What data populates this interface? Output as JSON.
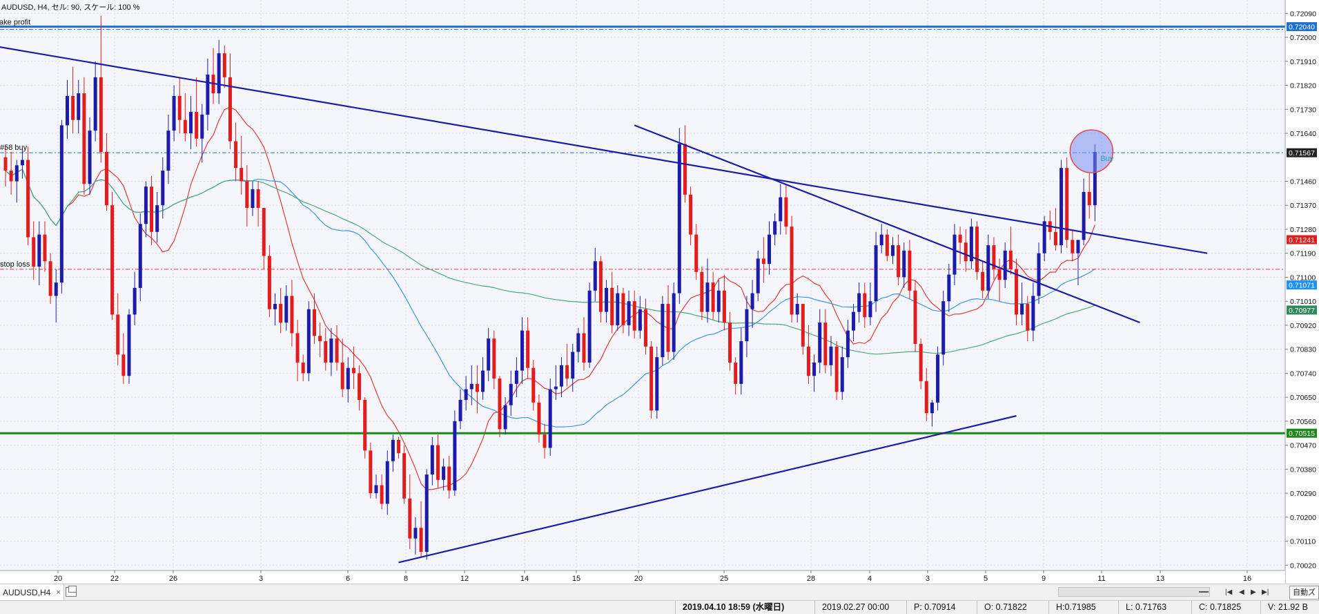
{
  "chart_header": "AUDUSD, H4, セル: 90, スケール: 100 %",
  "levels": {
    "take_profit": {
      "label": "take profit",
      "price": "0.72040",
      "color": "#1e6fd0"
    },
    "order": {
      "label": "#58 buy",
      "price": "0.71567",
      "color": "#1e6fd0"
    },
    "stop_loss": {
      "label": "stop loss",
      "price": "0.71130",
      "color": "#e03a3a"
    },
    "support": {
      "price": "0.70515",
      "color": "#1a8a1a"
    }
  },
  "buy_marker": "Buy",
  "price_badges": [
    {
      "value": "0.71241",
      "bg": "#e11d1d"
    },
    {
      "value": "0.71071",
      "bg": "#1e90ff"
    },
    {
      "value": "0.70977",
      "bg": "#2e8b57"
    }
  ],
  "y_axis": {
    "ticks": [
      "0.72090",
      "0.72000",
      "0.71910",
      "0.71820",
      "0.71730",
      "0.71640",
      "0.71460",
      "0.71370",
      "0.71280",
      "0.71190",
      "0.71100",
      "0.71010",
      "0.70920",
      "0.70830",
      "0.70740",
      "0.70650",
      "0.70560",
      "0.70470",
      "0.70380",
      "0.70290",
      "0.70200",
      "0.70110",
      "0.70020"
    ]
  },
  "x_axis": {
    "ticks": [
      "20",
      "22",
      "26",
      "3",
      "6",
      "8",
      "12",
      "14",
      "15",
      "20",
      "25",
      "28",
      "4",
      "3",
      "5",
      "9",
      "11",
      "13",
      "16"
    ]
  },
  "chart_data": {
    "type": "candlestick",
    "symbol": "AUDUSD",
    "timeframe": "H4",
    "ylim": [
      0.7,
      0.7214
    ],
    "bull_color": "#1c1ca8",
    "bear_color": "#e11d1d",
    "candles": [
      [
        0.7155,
        0.7159,
        0.7144,
        0.715
      ],
      [
        0.715,
        0.7157,
        0.7141,
        0.7146
      ],
      [
        0.7146,
        0.7154,
        0.7138,
        0.7152
      ],
      [
        0.7152,
        0.7158,
        0.7147,
        0.7154
      ],
      [
        0.7154,
        0.7159,
        0.7122,
        0.7125
      ],
      [
        0.7125,
        0.7131,
        0.7109,
        0.7114
      ],
      [
        0.7114,
        0.7131,
        0.7107,
        0.7126
      ],
      [
        0.7126,
        0.7131,
        0.7112,
        0.7116
      ],
      [
        0.7116,
        0.7119,
        0.71,
        0.7103
      ],
      [
        0.7103,
        0.7113,
        0.7093,
        0.7108
      ],
      [
        0.7108,
        0.7169,
        0.7104,
        0.7167
      ],
      [
        0.7167,
        0.7184,
        0.7162,
        0.7178
      ],
      [
        0.7178,
        0.7189,
        0.7164,
        0.7169
      ],
      [
        0.7169,
        0.7184,
        0.7164,
        0.7179
      ],
      [
        0.7179,
        0.7185,
        0.7141,
        0.7145
      ],
      [
        0.7145,
        0.717,
        0.7141,
        0.7165
      ],
      [
        0.7165,
        0.7191,
        0.7161,
        0.7185
      ],
      [
        0.7185,
        0.7208,
        0.7153,
        0.7157
      ],
      [
        0.7157,
        0.7164,
        0.7135,
        0.7137
      ],
      [
        0.7137,
        0.7142,
        0.7094,
        0.7096
      ],
      [
        0.7096,
        0.7104,
        0.7077,
        0.7081
      ],
      [
        0.7081,
        0.7089,
        0.707,
        0.7073
      ],
      [
        0.7073,
        0.7098,
        0.707,
        0.7096
      ],
      [
        0.7096,
        0.7112,
        0.7092,
        0.7106
      ],
      [
        0.7106,
        0.7134,
        0.7101,
        0.713
      ],
      [
        0.713,
        0.7146,
        0.7125,
        0.7144
      ],
      [
        0.7144,
        0.7148,
        0.7122,
        0.7127
      ],
      [
        0.7127,
        0.7142,
        0.7123,
        0.7137
      ],
      [
        0.7137,
        0.7155,
        0.7132,
        0.715
      ],
      [
        0.715,
        0.7171,
        0.7145,
        0.7165
      ],
      [
        0.7165,
        0.7182,
        0.7161,
        0.7178
      ],
      [
        0.7178,
        0.7185,
        0.7164,
        0.7169
      ],
      [
        0.7169,
        0.7179,
        0.7161,
        0.7164
      ],
      [
        0.7164,
        0.7178,
        0.7158,
        0.7172
      ],
      [
        0.7172,
        0.7185,
        0.7159,
        0.7162
      ],
      [
        0.7162,
        0.7175,
        0.7153,
        0.7171
      ],
      [
        0.7171,
        0.7192,
        0.7165,
        0.7186
      ],
      [
        0.7186,
        0.7196,
        0.7175,
        0.7179
      ],
      [
        0.7179,
        0.7199,
        0.7175,
        0.7194
      ],
      [
        0.7194,
        0.7197,
        0.7181,
        0.7185
      ],
      [
        0.7185,
        0.7194,
        0.7158,
        0.7161
      ],
      [
        0.7161,
        0.7168,
        0.7146,
        0.7151
      ],
      [
        0.7151,
        0.7163,
        0.7141,
        0.7146
      ],
      [
        0.7146,
        0.7152,
        0.7129,
        0.7136
      ],
      [
        0.7136,
        0.7146,
        0.7133,
        0.7143
      ],
      [
        0.7143,
        0.7146,
        0.7129,
        0.7136
      ],
      [
        0.7136,
        0.7136,
        0.7113,
        0.7118
      ],
      [
        0.7118,
        0.7122,
        0.7095,
        0.7098
      ],
      [
        0.7098,
        0.7104,
        0.7092,
        0.71
      ],
      [
        0.71,
        0.7106,
        0.7089,
        0.7093
      ],
      [
        0.7093,
        0.7107,
        0.709,
        0.7103
      ],
      [
        0.7103,
        0.7109,
        0.7084,
        0.7089
      ],
      [
        0.7089,
        0.7094,
        0.7071,
        0.7078
      ],
      [
        0.7078,
        0.7081,
        0.7071,
        0.7074
      ],
      [
        0.7074,
        0.7101,
        0.7071,
        0.7098
      ],
      [
        0.7098,
        0.7104,
        0.7085,
        0.7088
      ],
      [
        0.7088,
        0.7093,
        0.708,
        0.7086
      ],
      [
        0.7086,
        0.7091,
        0.7075,
        0.7078
      ],
      [
        0.7078,
        0.7091,
        0.7073,
        0.7087
      ],
      [
        0.7087,
        0.7092,
        0.7075,
        0.7078
      ],
      [
        0.7078,
        0.7087,
        0.7065,
        0.7068
      ],
      [
        0.7068,
        0.708,
        0.7063,
        0.7076
      ],
      [
        0.7076,
        0.7084,
        0.7068,
        0.7074
      ],
      [
        0.7074,
        0.7077,
        0.706,
        0.7064
      ],
      [
        0.7064,
        0.7065,
        0.7042,
        0.7045
      ],
      [
        0.7045,
        0.7048,
        0.7027,
        0.7029
      ],
      [
        0.7029,
        0.7036,
        0.7027,
        0.7032
      ],
      [
        0.7032,
        0.7036,
        0.7023,
        0.7025
      ],
      [
        0.7025,
        0.7045,
        0.7021,
        0.7041
      ],
      [
        0.7041,
        0.7051,
        0.7037,
        0.7049
      ],
      [
        0.7049,
        0.705,
        0.7042,
        0.7044
      ],
      [
        0.7044,
        0.7047,
        0.7025,
        0.7027
      ],
      [
        0.7027,
        0.7036,
        0.7008,
        0.7012
      ],
      [
        0.7012,
        0.702,
        0.7006,
        0.7016
      ],
      [
        0.7016,
        0.7026,
        0.7005,
        0.7007
      ],
      [
        0.7007,
        0.7038,
        0.7004,
        0.7036
      ],
      [
        0.7036,
        0.705,
        0.7032,
        0.7047
      ],
      [
        0.7047,
        0.7051,
        0.7031,
        0.7034
      ],
      [
        0.7034,
        0.7042,
        0.703,
        0.7039
      ],
      [
        0.7039,
        0.7043,
        0.7027,
        0.703
      ],
      [
        0.703,
        0.706,
        0.7028,
        0.7056
      ],
      [
        0.7056,
        0.7068,
        0.7053,
        0.7064
      ],
      [
        0.7064,
        0.7073,
        0.706,
        0.7068
      ],
      [
        0.7068,
        0.7077,
        0.7062,
        0.707
      ],
      [
        0.707,
        0.7077,
        0.7059,
        0.7067
      ],
      [
        0.7067,
        0.708,
        0.7064,
        0.7075
      ],
      [
        0.7075,
        0.7091,
        0.7071,
        0.7087
      ],
      [
        0.7087,
        0.709,
        0.7068,
        0.7072
      ],
      [
        0.7072,
        0.7073,
        0.705,
        0.7053
      ],
      [
        0.7053,
        0.7065,
        0.7051,
        0.7062
      ],
      [
        0.7062,
        0.7075,
        0.7058,
        0.707
      ],
      [
        0.707,
        0.708,
        0.7065,
        0.7075
      ],
      [
        0.7075,
        0.7095,
        0.707,
        0.709
      ],
      [
        0.709,
        0.7095,
        0.7072,
        0.7076
      ],
      [
        0.7076,
        0.7079,
        0.706,
        0.7063
      ],
      [
        0.7063,
        0.7066,
        0.7048,
        0.7051
      ],
      [
        0.7051,
        0.7055,
        0.7042,
        0.7046
      ],
      [
        0.7046,
        0.7072,
        0.7043,
        0.7068
      ],
      [
        0.7068,
        0.7077,
        0.7064,
        0.7069
      ],
      [
        0.7069,
        0.708,
        0.7065,
        0.7077
      ],
      [
        0.7077,
        0.7085,
        0.7069,
        0.7072
      ],
      [
        0.7072,
        0.7085,
        0.7067,
        0.7082
      ],
      [
        0.7082,
        0.7091,
        0.7078,
        0.7089
      ],
      [
        0.7089,
        0.7095,
        0.7075,
        0.7078
      ],
      [
        0.7078,
        0.7108,
        0.7076,
        0.7105
      ],
      [
        0.7105,
        0.7121,
        0.7101,
        0.7116
      ],
      [
        0.7116,
        0.7118,
        0.7093,
        0.7097
      ],
      [
        0.7097,
        0.7109,
        0.7093,
        0.7106
      ],
      [
        0.7106,
        0.7112,
        0.7089,
        0.7092
      ],
      [
        0.7092,
        0.7107,
        0.709,
        0.7104
      ],
      [
        0.7104,
        0.7106,
        0.7089,
        0.7092
      ],
      [
        0.7092,
        0.7105,
        0.7088,
        0.7101
      ],
      [
        0.7101,
        0.7105,
        0.7087,
        0.709
      ],
      [
        0.709,
        0.7103,
        0.7087,
        0.7098
      ],
      [
        0.7098,
        0.7102,
        0.7081,
        0.7084
      ],
      [
        0.7084,
        0.7086,
        0.7057,
        0.706
      ],
      [
        0.706,
        0.7084,
        0.7057,
        0.708
      ],
      [
        0.708,
        0.7103,
        0.7077,
        0.71
      ],
      [
        0.71,
        0.7107,
        0.7079,
        0.7082
      ],
      [
        0.7082,
        0.7108,
        0.7079,
        0.7104
      ],
      [
        0.7104,
        0.7166,
        0.71,
        0.716
      ],
      [
        0.716,
        0.7167,
        0.7138,
        0.7141
      ],
      [
        0.7141,
        0.7144,
        0.7122,
        0.7126
      ],
      [
        0.7126,
        0.713,
        0.7109,
        0.7112
      ],
      [
        0.7112,
        0.7114,
        0.7094,
        0.7097
      ],
      [
        0.7097,
        0.7117,
        0.7093,
        0.7108
      ],
      [
        0.7108,
        0.7112,
        0.7094,
        0.7097
      ],
      [
        0.7097,
        0.7109,
        0.7093,
        0.7105
      ],
      [
        0.7105,
        0.7111,
        0.709,
        0.7093
      ],
      [
        0.7093,
        0.7097,
        0.7075,
        0.7078
      ],
      [
        0.7078,
        0.708,
        0.7066,
        0.707
      ],
      [
        0.707,
        0.7091,
        0.7066,
        0.7086
      ],
      [
        0.7086,
        0.7103,
        0.708,
        0.7098
      ],
      [
        0.7098,
        0.7109,
        0.7091,
        0.7104
      ],
      [
        0.7104,
        0.712,
        0.7101,
        0.7117
      ],
      [
        0.7117,
        0.7125,
        0.7108,
        0.7115
      ],
      [
        0.7115,
        0.7131,
        0.7111,
        0.7126
      ],
      [
        0.7126,
        0.7134,
        0.7122,
        0.7131
      ],
      [
        0.7131,
        0.7145,
        0.7126,
        0.714
      ],
      [
        0.714,
        0.7145,
        0.7126,
        0.7129
      ],
      [
        0.7129,
        0.7133,
        0.7093,
        0.7096
      ],
      [
        0.7096,
        0.7104,
        0.7093,
        0.71
      ],
      [
        0.71,
        0.71,
        0.7081,
        0.7084
      ],
      [
        0.7084,
        0.7092,
        0.707,
        0.7073
      ],
      [
        0.7073,
        0.7081,
        0.7067,
        0.7078
      ],
      [
        0.7078,
        0.7098,
        0.7074,
        0.7093
      ],
      [
        0.7093,
        0.7098,
        0.7074,
        0.7077
      ],
      [
        0.7077,
        0.7088,
        0.7073,
        0.7084
      ],
      [
        0.7084,
        0.7086,
        0.7064,
        0.7067
      ],
      [
        0.7067,
        0.7084,
        0.7064,
        0.708
      ],
      [
        0.708,
        0.7094,
        0.7076,
        0.709
      ],
      [
        0.709,
        0.71,
        0.7086,
        0.7097
      ],
      [
        0.7097,
        0.7108,
        0.7093,
        0.7104
      ],
      [
        0.7104,
        0.7108,
        0.7091,
        0.7095
      ],
      [
        0.7095,
        0.7108,
        0.7092,
        0.7101
      ],
      [
        0.7101,
        0.7127,
        0.7097,
        0.7122
      ],
      [
        0.7122,
        0.713,
        0.7119,
        0.7126
      ],
      [
        0.7126,
        0.7128,
        0.7116,
        0.7118
      ],
      [
        0.7118,
        0.7125,
        0.7115,
        0.7122
      ],
      [
        0.7122,
        0.7126,
        0.7107,
        0.711
      ],
      [
        0.711,
        0.7123,
        0.7106,
        0.712
      ],
      [
        0.712,
        0.7124,
        0.7102,
        0.7105
      ],
      [
        0.7105,
        0.7109,
        0.7082,
        0.7085
      ],
      [
        0.7085,
        0.7087,
        0.7068,
        0.7071
      ],
      [
        0.7071,
        0.7076,
        0.7056,
        0.7059
      ],
      [
        0.7059,
        0.7064,
        0.7054,
        0.7063
      ],
      [
        0.7063,
        0.7084,
        0.706,
        0.7081
      ],
      [
        0.7081,
        0.7105,
        0.7077,
        0.7101
      ],
      [
        0.7101,
        0.7115,
        0.7097,
        0.7111
      ],
      [
        0.7111,
        0.713,
        0.7107,
        0.7126
      ],
      [
        0.7126,
        0.7129,
        0.7115,
        0.7123
      ],
      [
        0.7123,
        0.7128,
        0.7112,
        0.7116
      ],
      [
        0.7116,
        0.7132,
        0.7113,
        0.7129
      ],
      [
        0.7129,
        0.7131,
        0.7109,
        0.7112
      ],
      [
        0.7112,
        0.7116,
        0.7102,
        0.7105
      ],
      [
        0.7105,
        0.7126,
        0.7102,
        0.7122
      ],
      [
        0.7122,
        0.7125,
        0.7109,
        0.7113
      ],
      [
        0.7113,
        0.7117,
        0.7101,
        0.7109
      ],
      [
        0.7109,
        0.7123,
        0.7106,
        0.712
      ],
      [
        0.712,
        0.7129,
        0.7111,
        0.7113
      ],
      [
        0.7113,
        0.7117,
        0.7092,
        0.7096
      ],
      [
        0.7096,
        0.7108,
        0.7092,
        0.71
      ],
      [
        0.71,
        0.7103,
        0.7086,
        0.709
      ],
      [
        0.709,
        0.7108,
        0.7086,
        0.7103
      ],
      [
        0.7103,
        0.7123,
        0.71,
        0.7119
      ],
      [
        0.7119,
        0.7133,
        0.7116,
        0.7131
      ],
      [
        0.7131,
        0.7135,
        0.7124,
        0.7127
      ],
      [
        0.7127,
        0.7136,
        0.712,
        0.7122
      ],
      [
        0.7122,
        0.7154,
        0.7119,
        0.7151
      ],
      [
        0.7151,
        0.7155,
        0.7121,
        0.7124
      ],
      [
        0.7124,
        0.7128,
        0.7116,
        0.7119
      ],
      [
        0.7119,
        0.7124,
        0.7107,
        0.7124
      ],
      [
        0.7124,
        0.7147,
        0.7122,
        0.7142
      ],
      [
        0.7142,
        0.7149,
        0.7132,
        0.7137
      ],
      [
        0.7137,
        0.716,
        0.7131,
        0.7157
      ]
    ],
    "moving_averages": [
      {
        "name": "MA short",
        "color": "#e03a3a"
      },
      {
        "name": "MA medium",
        "color": "#3a9ad9"
      },
      {
        "name": "MA long",
        "color": "#4aaa7a"
      }
    ],
    "trendlines": [
      {
        "color": "#1c1ca8",
        "points": [
          [
            -50,
            0.7214
          ],
          [
            214,
            0.7119
          ]
        ]
      },
      {
        "color": "#1c1ca8",
        "points": [
          [
            112,
            0.7167
          ],
          [
            202,
            0.7093
          ]
        ]
      },
      {
        "color": "#1c1ca8",
        "points": [
          [
            70,
            0.7003
          ],
          [
            180,
            0.7058
          ]
        ]
      }
    ]
  },
  "tabs": [
    {
      "label": "AUDUSD,H4",
      "close": "×"
    }
  ],
  "nav_buttons": [
    "|◀",
    "◀",
    "▶",
    "▶|"
  ],
  "autozoom_label": "自動ズーム",
  "status": {
    "datetime": "2019.04.10 18:59 (水曜日)",
    "bar_time": "2019.02.27 00:00",
    "p": "P: 0.70914",
    "o": "O: 0.71822",
    "h": "H:0.71985",
    "l": "L: 0.71763",
    "c": "C: 0.71825",
    "v": "V: 21.92 B"
  }
}
